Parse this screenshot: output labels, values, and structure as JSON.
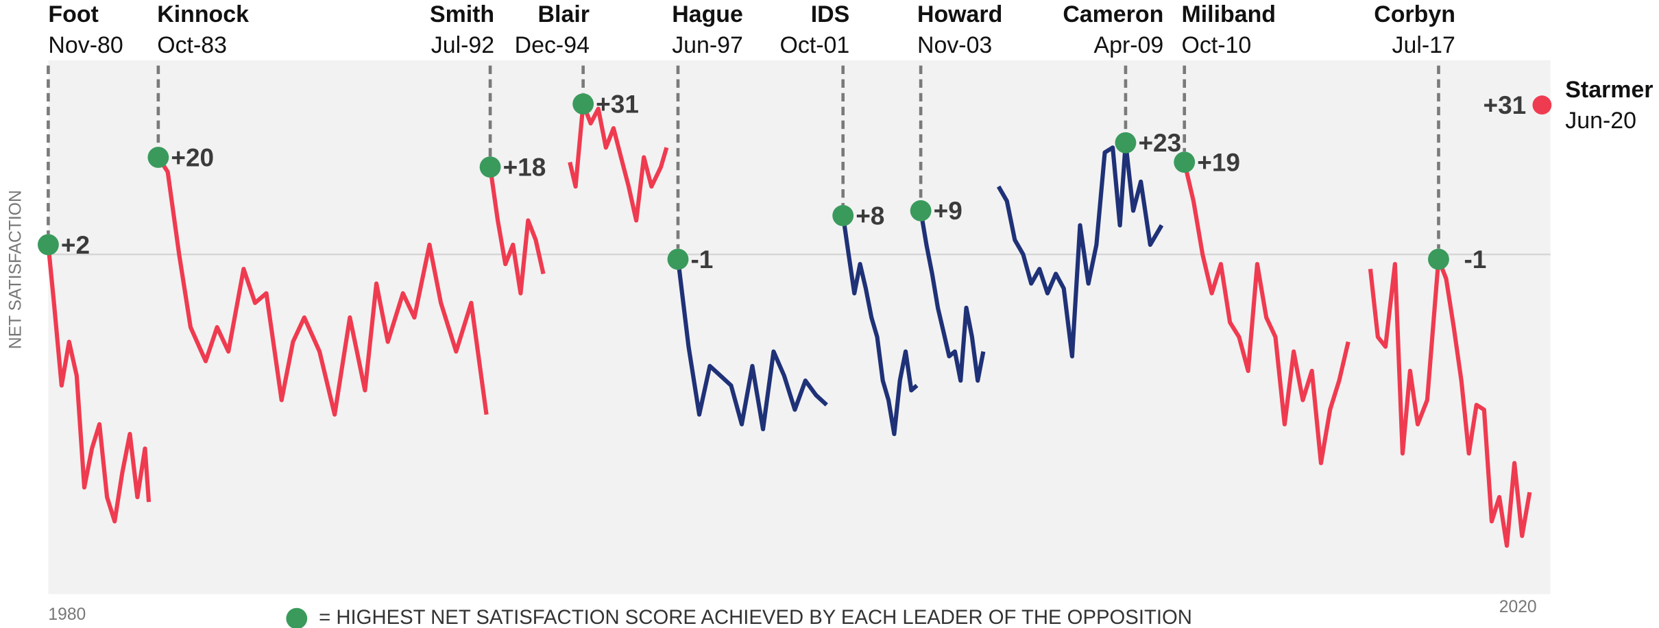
{
  "chart_data": {
    "type": "line",
    "y_axis_label": "NET SATISFACTION",
    "x_start_label": "1980",
    "x_end_label": "2020",
    "legend_note": "= HIGHEST NET SATISFACTION SCORE ACHIEVED BY EACH LEADER OF THE OPPOSITION",
    "peak_color": "#3a9a5c",
    "reference_line": 0,
    "xlim": [
      1980.85,
      2020.45
    ],
    "ylim": [
      -70,
      40
    ],
    "series": [
      {
        "name": "Foot",
        "color": "#ef3b50",
        "x": [
          1980.85,
          1981.0,
          1981.2,
          1981.4,
          1981.6,
          1981.8,
          1982.0,
          1982.2,
          1982.4,
          1982.6,
          1982.8,
          1983.0,
          1983.2,
          1983.4,
          1983.5
        ],
        "values": [
          2,
          -10,
          -27,
          -18,
          -25,
          -48,
          -40,
          -35,
          -50,
          -55,
          -45,
          -37,
          -50,
          -40,
          -51
        ],
        "peak": {
          "x": 1980.85,
          "value": 2,
          "value_label": "+2",
          "date": "Nov-80"
        }
      },
      {
        "name": "Kinnock",
        "color": "#ef3b50",
        "x": [
          1983.75,
          1984.0,
          1984.3,
          1984.6,
          1985.0,
          1985.3,
          1985.6,
          1986.0,
          1986.3,
          1986.6,
          1987.0,
          1987.3,
          1987.6,
          1988.0,
          1988.4,
          1988.8,
          1989.2,
          1989.5,
          1989.8,
          1990.2,
          1990.5,
          1990.9,
          1991.2,
          1991.6,
          1992.0,
          1992.4
        ],
        "values": [
          20,
          17,
          0,
          -15,
          -22,
          -15,
          -20,
          -3,
          -10,
          -8,
          -30,
          -18,
          -13,
          -20,
          -33,
          -13,
          -28,
          -6,
          -18,
          -8,
          -13,
          2,
          -10,
          -20,
          -10,
          -33
        ],
        "peak": {
          "x": 1983.75,
          "value": 20,
          "value_label": "+20",
          "date": "Oct-83"
        }
      },
      {
        "name": "Smith",
        "color": "#ef3b50",
        "x": [
          1992.5,
          1992.7,
          1992.9,
          1993.1,
          1993.3,
          1993.5,
          1993.7,
          1993.9
        ],
        "values": [
          18,
          7,
          -2,
          2,
          -8,
          7,
          3,
          -4
        ],
        "peak": {
          "x": 1992.5,
          "value": 18,
          "value_label": "+18",
          "date": "Jul-92"
        }
      },
      {
        "name": "Blair",
        "color": "#ef3b50",
        "x": [
          1994.6,
          1994.75,
          1994.95,
          1995.15,
          1995.35,
          1995.55,
          1995.75,
          1995.95,
          1996.15,
          1996.35,
          1996.55,
          1996.75,
          1997.0,
          1997.15
        ],
        "values": [
          19,
          14,
          31,
          27,
          30,
          22,
          26,
          20,
          14,
          7,
          20,
          14,
          18,
          22
        ],
        "peak": {
          "x": 1994.95,
          "value": 31,
          "value_label": "+31",
          "date": "Dec-94"
        }
      },
      {
        "name": "Hague",
        "color": "#1f3177",
        "x": [
          1997.45,
          1997.73,
          1998.01,
          1998.29,
          1998.57,
          1998.85,
          1999.13,
          1999.41,
          1999.69,
          1999.97,
          2000.25,
          2000.53,
          2000.81,
          2001.09,
          2001.37
        ],
        "values": [
          -1,
          -19,
          -33,
          -23,
          -25,
          -27,
          -35,
          -23,
          -36,
          -20,
          -25,
          -32,
          -26,
          -29,
          -31
        ],
        "peak": {
          "x": 1997.45,
          "value": -1,
          "value_label": "-1",
          "date": "Jun-97"
        }
      },
      {
        "name": "IDS",
        "color": "#1f3177",
        "x": [
          2001.8,
          2001.95,
          2002.1,
          2002.25,
          2002.4,
          2002.55,
          2002.7,
          2002.85,
          2003.0,
          2003.15,
          2003.3,
          2003.45,
          2003.6,
          2003.75
        ],
        "values": [
          8,
          0,
          -8,
          -2,
          -7,
          -13,
          -17,
          -26,
          -30,
          -37,
          -26,
          -20,
          -28,
          -27
        ],
        "peak": {
          "x": 2001.8,
          "value": 8,
          "value_label": "+8",
          "date": "Oct-01"
        }
      },
      {
        "name": "Howard",
        "color": "#1f3177",
        "x": [
          2003.8,
          2003.85,
          2004.0,
          2004.15,
          2004.3,
          2004.45,
          2004.6,
          2004.75,
          2004.9,
          2005.05,
          2005.2,
          2005.35,
          2005.5
        ],
        "values": [
          8,
          9,
          2,
          -4,
          -11,
          -16,
          -21,
          -20,
          -26,
          -11,
          -17,
          -26,
          -20
        ],
        "peak": {
          "x": 2003.85,
          "value": 9,
          "value_label": "+9",
          "date": "Nov-03"
        }
      },
      {
        "name": "Cameron",
        "color": "#1f3177",
        "x": [
          2005.9,
          2006.12,
          2006.33,
          2006.55,
          2006.76,
          2006.98,
          2007.19,
          2007.41,
          2007.62,
          2007.84,
          2008.05,
          2008.27,
          2008.48,
          2008.7,
          2008.91,
          2009.1,
          2009.25,
          2009.45,
          2009.65,
          2009.9,
          2010.2
        ],
        "values": [
          14,
          11,
          3,
          0,
          -6,
          -3,
          -8,
          -4,
          -7,
          -21,
          6,
          -6,
          2,
          21,
          22,
          6,
          23,
          9,
          15,
          2,
          6
        ],
        "peak": {
          "x": 2009.25,
          "value": 23,
          "value_label": "+23",
          "date": "Apr-09"
        }
      },
      {
        "name": "Miliband",
        "color": "#ef3b50",
        "x": [
          2010.8,
          2011.04,
          2011.28,
          2011.52,
          2011.76,
          2012.0,
          2012.24,
          2012.48,
          2012.72,
          2012.96,
          2013.2,
          2013.44,
          2013.68,
          2013.92,
          2014.16,
          2014.4,
          2014.64,
          2014.88,
          2015.12
        ],
        "values": [
          19,
          11,
          0,
          -8,
          -2,
          -14,
          -17,
          -24,
          -2,
          -13,
          -17,
          -35,
          -20,
          -30,
          -24,
          -43,
          -32,
          -26,
          -18
        ],
        "peak": {
          "x": 2010.8,
          "value": 19,
          "value_label": "+19",
          "date": "Oct-10"
        }
      },
      {
        "name": "Corbyn",
        "color": "#ef3b50",
        "x": [
          2015.7,
          2015.9,
          2016.1,
          2016.35,
          2016.55,
          2016.75,
          2016.95,
          2017.2,
          2017.5,
          2017.7,
          2017.9,
          2018.1,
          2018.3,
          2018.5,
          2018.7,
          2018.9,
          2019.1,
          2019.3,
          2019.5,
          2019.7,
          2019.9
        ],
        "values": [
          -3,
          -17,
          -19,
          -2,
          -41,
          -24,
          -35,
          -30,
          -1,
          -5,
          -15,
          -26,
          -41,
          -31,
          -32,
          -55,
          -50,
          -60,
          -43,
          -58,
          -49
        ],
        "peak": {
          "x": 2017.5,
          "value": -1,
          "value_label": "-1",
          "date": "Jul-17"
        }
      },
      {
        "name": "Starmer",
        "color": "#ef3b50",
        "peak": {
          "value": 31,
          "value_label": "+31",
          "date": "Jun-20"
        }
      }
    ]
  }
}
